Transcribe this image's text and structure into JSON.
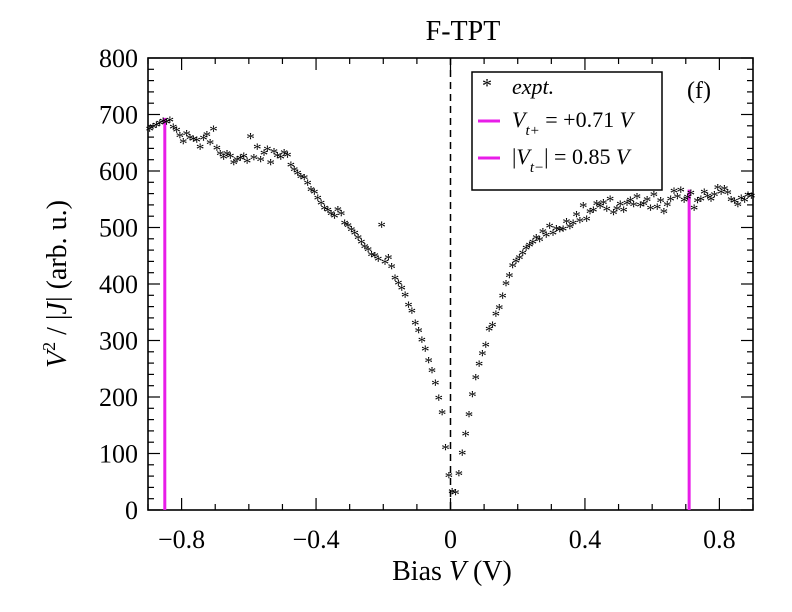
{
  "chart_data": {
    "type": "scatter",
    "title": "F-TPT",
    "panel_label": "(f)",
    "xlabel": "Bias V (V)",
    "xlabel_parts": [
      "Bias ",
      "V",
      " (V)"
    ],
    "ylabel": "V² / |J| (arb. u.)",
    "ylabel_parts": [
      "V",
      "2",
      " / |",
      "J",
      "| (arb. u.)"
    ],
    "xlim": [
      -0.9,
      0.9
    ],
    "ylim": [
      0,
      800
    ],
    "x_ticks": [
      -0.8,
      -0.4,
      0,
      0.4,
      0.8
    ],
    "x_tick_labels": [
      "−0.8",
      "−0.4",
      "0",
      "0.4",
      "0.8"
    ],
    "y_ticks": [
      0,
      100,
      200,
      300,
      400,
      500,
      600,
      700,
      800
    ],
    "y_tick_labels": [
      "0",
      "100",
      "200",
      "300",
      "400",
      "500",
      "600",
      "700",
      "800"
    ],
    "zero_line_x": 0,
    "series": [
      {
        "name": "expt.",
        "kind": "points",
        "color": "#b88a86",
        "x": [
          -0.895,
          -0.885,
          -0.875,
          -0.865,
          -0.855,
          -0.845,
          -0.835,
          -0.825,
          -0.815,
          -0.805,
          -0.795,
          -0.785,
          -0.775,
          -0.765,
          -0.755,
          -0.745,
          -0.735,
          -0.725,
          -0.715,
          -0.705,
          -0.695,
          -0.685,
          -0.675,
          -0.665,
          -0.655,
          -0.645,
          -0.635,
          -0.625,
          -0.615,
          -0.605,
          -0.595,
          -0.585,
          -0.575,
          -0.565,
          -0.555,
          -0.545,
          -0.535,
          -0.525,
          -0.515,
          -0.505,
          -0.495,
          -0.485,
          -0.475,
          -0.465,
          -0.455,
          -0.445,
          -0.435,
          -0.425,
          -0.415,
          -0.405,
          -0.395,
          -0.385,
          -0.375,
          -0.365,
          -0.355,
          -0.345,
          -0.335,
          -0.325,
          -0.315,
          -0.305,
          -0.295,
          -0.285,
          -0.275,
          -0.265,
          -0.255,
          -0.245,
          -0.235,
          -0.225,
          -0.215,
          -0.205,
          -0.195,
          -0.185,
          -0.175,
          -0.165,
          -0.155,
          -0.145,
          -0.135,
          -0.125,
          -0.115,
          -0.105,
          -0.095,
          -0.085,
          -0.075,
          -0.065,
          -0.055,
          -0.045,
          -0.035,
          -0.025,
          -0.015,
          -0.005,
          0.005,
          0.015,
          0.025,
          0.035,
          0.045,
          0.055,
          0.065,
          0.075,
          0.085,
          0.095,
          0.105,
          0.115,
          0.125,
          0.135,
          0.145,
          0.155,
          0.165,
          0.175,
          0.185,
          0.195,
          0.205,
          0.215,
          0.225,
          0.235,
          0.245,
          0.255,
          0.265,
          0.275,
          0.285,
          0.295,
          0.305,
          0.315,
          0.325,
          0.335,
          0.345,
          0.355,
          0.365,
          0.375,
          0.385,
          0.395,
          0.405,
          0.415,
          0.425,
          0.435,
          0.445,
          0.455,
          0.465,
          0.475,
          0.485,
          0.495,
          0.505,
          0.515,
          0.525,
          0.535,
          0.545,
          0.555,
          0.565,
          0.575,
          0.585,
          0.595,
          0.605,
          0.615,
          0.625,
          0.635,
          0.645,
          0.655,
          0.665,
          0.675,
          0.685,
          0.695,
          0.705,
          0.715,
          0.725,
          0.735,
          0.745,
          0.755,
          0.765,
          0.775,
          0.785,
          0.795,
          0.805,
          0.815,
          0.825,
          0.835,
          0.845,
          0.855,
          0.865,
          0.875,
          0.885,
          0.895
        ],
        "y": [
          672,
          676,
          679,
          682,
          686,
          684,
          688,
          675,
          670,
          660,
          650,
          664,
          657,
          654,
          652,
          640,
          656,
          662,
          648,
          672,
          638,
          628,
          622,
          628,
          624,
          612,
          618,
          620,
          624,
          615,
          658,
          621,
          640,
          618,
          629,
          636,
          612,
          632,
          625,
          622,
          630,
          626,
          608,
          600,
          594,
          588,
          586,
          576,
          565,
          560,
          550,
          541,
          532,
          528,
          522,
          518,
          529,
          522,
          505,
          501,
          494,
          488,
          480,
          472,
          464,
          458,
          450,
          448,
          442,
          502,
          436,
          444,
          428,
          408,
          399,
          390,
          378,
          360,
          350,
          328,
          315,
          298,
          282,
          262,
          244,
          222,
          196,
          170,
          108,
          58,
          30,
          28,
          62,
          98,
          132,
          166,
          202,
          232,
          256,
          274,
          289,
          318,
          325,
          344,
          356,
          376,
          398,
          412,
          430,
          438,
          444,
          452,
          461,
          466,
          472,
          480,
          476,
          490,
          484,
          500,
          488,
          496,
          494,
          495,
          508,
          499,
          505,
          520,
          510,
          536,
          512,
          526,
          528,
          540,
          535,
          542,
          530,
          548,
          524,
          531,
          539,
          528,
          541,
          546,
          538,
          552,
          537,
          540,
          547,
          532,
          556,
          534,
          545,
          526,
          538,
          548,
          562,
          552,
          564,
          546,
          551,
          558,
          532,
          545,
          548,
          560,
          553,
          548,
          556,
          568,
          560,
          566,
          559,
          547,
          544,
          538,
          550,
          546,
          555,
          553
        ]
      },
      {
        "name": "V_t+ = +0.71 V",
        "legend_main": "V",
        "legend_sub": "t+",
        "legend_rest": " = +0.71 ",
        "legend_unit": "V",
        "kind": "vline",
        "color": "#e81de8",
        "x": 0.71,
        "y_top": 567
      },
      {
        "name": "|V_t−| = 0.85 V",
        "legend_pre": "|",
        "legend_main": "V",
        "legend_sub": "t−",
        "legend_rest": "| = 0.85 ",
        "legend_unit": "V",
        "kind": "vline",
        "color": "#e81de8",
        "x": -0.85,
        "y_top": 694
      }
    ],
    "legend_position": "top-right"
  }
}
